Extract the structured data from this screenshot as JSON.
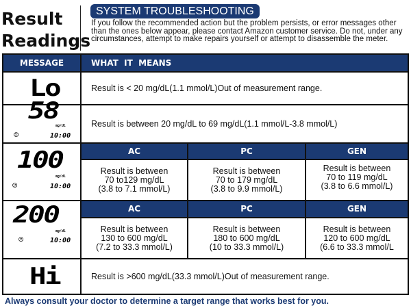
{
  "title": {
    "line1": "Result",
    "line2": "Readings"
  },
  "badge": "SYSTEM TROUBLESHOOTING",
  "intro": "If you follow the recommended action but the problem persists, or error messages other than the ones below appear, please contact Amazon customer service. Do not, under any circumstances, attempt to make repairs yourself or attempt to disassemble the meter.",
  "header": {
    "message": "MESSAGE",
    "meaning": "WHAT  IT  MEANS"
  },
  "rows": {
    "lo": {
      "display": "Lo",
      "text": "Result is < 20 mg/dL(1.1 mmol/L)Out of measurement range."
    },
    "r58": {
      "display": "58",
      "unit": "mg/dL",
      "time": "10:00",
      "face": "☹",
      "text": "Result is between 20 mg/dL to 69 mg/dL(1.1 mmol/L-3.8 mmol/L)"
    },
    "r100": {
      "display": "100",
      "unit": "mg/dL",
      "time": "10:00",
      "face": "☺",
      "ac": "AC",
      "pc": "PC",
      "gen": "GEN",
      "ac_text": [
        "Result is between",
        "70 to129 mg/dL",
        "(3.8 to 7.1 mmol/L)"
      ],
      "pc_text": [
        "Result is between",
        "70 to 179 mg/dL",
        "(3.8 to 9.9 mmol/L)"
      ],
      "gen_text": [
        "Result is between",
        "70 to 119 mg/dL",
        "(3.8 to 6.6 mmol/L)"
      ]
    },
    "r200": {
      "display": "200",
      "unit": "mg/dL",
      "time": "10:00",
      "face": "☹",
      "ac": "AC",
      "pc": "PC",
      "gen": "GEN",
      "ac_text": [
        "Result is between",
        "130 to 600 mg/dL",
        "(7.2 to 33.3 mmol/L)"
      ],
      "pc_text": [
        "Result is between",
        "180 to 600 mg/dL",
        "(10 to 33.3 mmol/L)"
      ],
      "gen_text": [
        "Result is between",
        "120 to 600 mg/dL",
        "(6.6 to 33.3 mmol/L"
      ]
    },
    "hi": {
      "display": "Hi",
      "text": "Result is >600 mg/dL(33.3 mmol/L)Out of measurement range."
    }
  },
  "footer": "Always consult your doctor to determine a target range that works best for you.",
  "colors": {
    "accent": "#1b3a73"
  }
}
